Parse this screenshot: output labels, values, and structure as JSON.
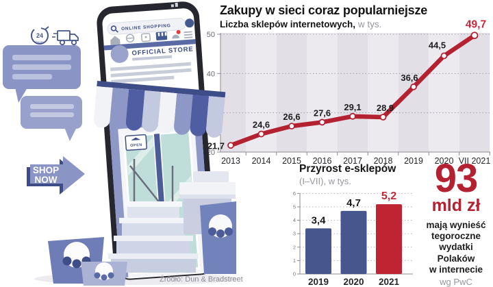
{
  "header": {
    "title": "Zakupy w sieci coraz popularniejsze",
    "subtitle_bold": "Liczba sklepów internetowych,",
    "subtitle_light": "w tys."
  },
  "chart_data": [
    {
      "type": "line",
      "title": "Zakupy w sieci coraz popularniejsze",
      "subtitle": "Liczba sklepów internetowych, w tys.",
      "categories": [
        "2013",
        "2014",
        "2015",
        "2016",
        "2017",
        "2018",
        "2019",
        "2020",
        "VII 2021"
      ],
      "values": [
        21.7,
        24.6,
        26.6,
        27.6,
        29.1,
        28.9,
        36.6,
        44.5,
        49.7
      ],
      "labels": [
        "21,7",
        "24,6",
        "26,6",
        "27,6",
        "29,1",
        "28,9",
        "36,6",
        "44,5",
        "49,7"
      ],
      "ylim": [
        20,
        50
      ],
      "yticks": [
        20,
        30,
        40,
        50
      ],
      "grid": "dotted-horizontal",
      "legend": "none",
      "line_color": "#b42232",
      "marker": "white-dot",
      "highlight_last_label": true
    },
    {
      "type": "bar",
      "title": "Przyrost e-sklepów",
      "subtitle": "(I–VII), w tys.",
      "categories": [
        "2019",
        "2020",
        "2021"
      ],
      "values": [
        3.4,
        4.7,
        5.2
      ],
      "labels": [
        "3,4",
        "4,7",
        "5,2"
      ],
      "ylim": [
        0,
        6
      ],
      "yticks": [
        0,
        1,
        2,
        3,
        4,
        5,
        6
      ],
      "grid": "dotted-horizontal",
      "legend": "none",
      "bar_colors": [
        "#47568c",
        "#47568c",
        "#bf2433"
      ]
    }
  ],
  "big_number": {
    "value": "93",
    "unit": "mld zł",
    "description_lines": [
      "mają wynieść",
      "tegoroczne",
      "wydatki Polaków",
      "w internecie"
    ],
    "attribution": "wg PwC"
  },
  "source": "Źródło: Dun & Bradstreet",
  "illustration": {
    "search_text": "ONLINE SHOPPING",
    "store_name": "OFFICIAL STORE",
    "open_sign": "OPEN",
    "shop_now_line1": "SHOP",
    "shop_now_line2": "NOW",
    "hours_value": "24",
    "hours_label": "hours"
  },
  "colors": {
    "accent_red": "#b42232",
    "label_red": "#c62839",
    "bar_blue": "#47568c",
    "periwinkle": "#8a94c5",
    "navy": "#3e4d87",
    "chart_band_dark": "#e2e0e6",
    "chart_band_light": "#eceaef"
  }
}
